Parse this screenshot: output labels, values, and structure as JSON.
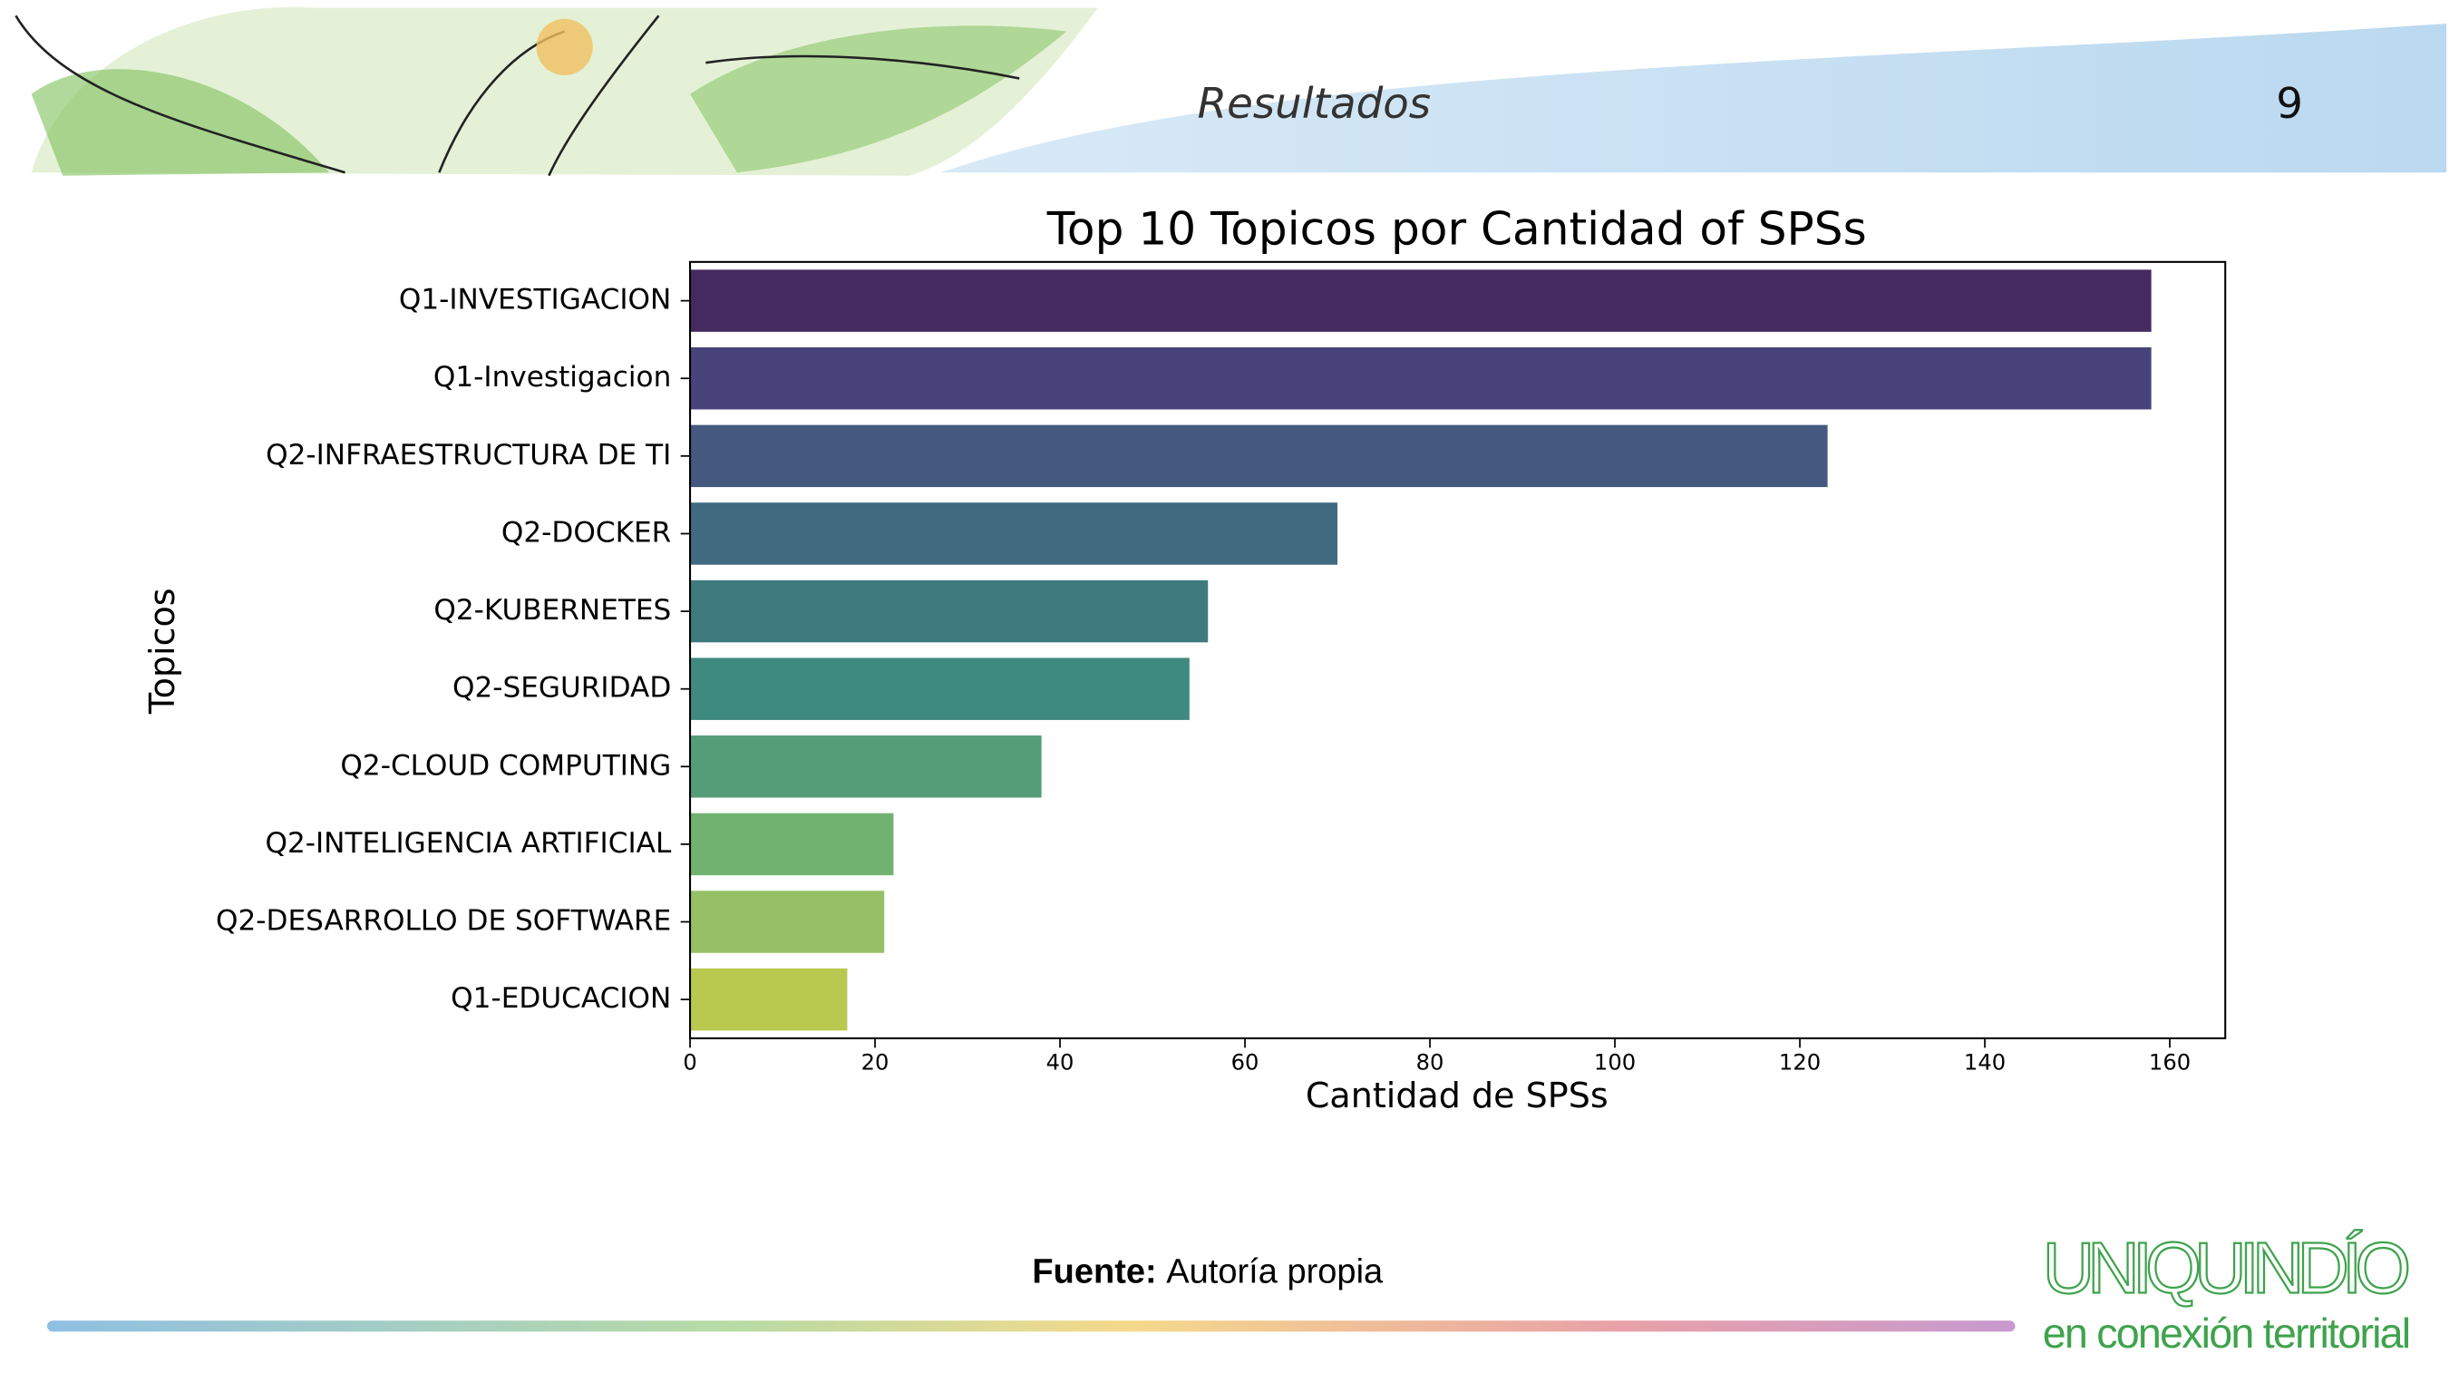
{
  "header": {
    "title": "Resultados",
    "page_number": "9"
  },
  "chart_data": {
    "type": "bar",
    "orientation": "horizontal",
    "title": "Top 10 Topicos por Cantidad of SPSs",
    "x_label": "Cantidad de SPSs",
    "y_label": "Topicos",
    "categories": [
      "Q1-INVESTIGACION",
      "Q1-Investigacion",
      "Q2-INFRAESTRUCTURA DE TI",
      "Q2-DOCKER",
      "Q2-KUBERNETES",
      "Q2-SEGURIDAD",
      "Q2-CLOUD COMPUTING",
      "Q2-INTELIGENCIA ARTIFICIAL",
      "Q2-DESARROLLO DE SOFTWARE",
      "Q1-EDUCACION"
    ],
    "values": [
      158,
      158,
      123,
      70,
      56,
      54,
      38,
      22,
      21,
      17
    ],
    "colors": [
      "#452a62",
      "#48437a",
      "#45587f",
      "#3f6a7f",
      "#3e7a7d",
      "#3f8a7e",
      "#559d78",
      "#72b270",
      "#96c065",
      "#b9c94f"
    ],
    "xlim": [
      0,
      166
    ],
    "xticks": [
      0,
      20,
      40,
      60,
      80,
      100,
      120,
      140,
      160
    ],
    "grid": false
  },
  "footer": {
    "source_label": "Fuente:",
    "source_text": "Autoría propia"
  },
  "logo": {
    "name": "UNIQUINDÍO",
    "tagline": "en conexión territorial"
  }
}
